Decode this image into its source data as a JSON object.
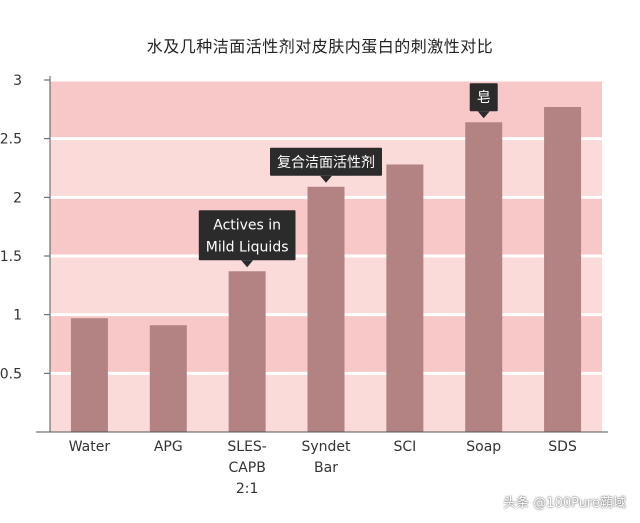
{
  "chart_data": {
    "type": "bar",
    "title": "水及几种洁面活性剂对皮肤内蛋白的刺激性对比",
    "xlabel": "",
    "ylabel": "",
    "categories": [
      [
        "Water"
      ],
      [
        "APG"
      ],
      [
        "SLES-",
        "CAPB",
        "2:1"
      ],
      [
        "Syndet",
        "Bar"
      ],
      [
        "SCI"
      ],
      [
        "Soap"
      ],
      [
        "SDS"
      ]
    ],
    "values": [
      0.97,
      0.91,
      1.37,
      2.09,
      2.28,
      2.64,
      2.77
    ],
    "ylim": [
      0,
      3
    ],
    "yticks": [
      0.5,
      1,
      1.5,
      2,
      2.5,
      3
    ],
    "ytick_labels": [
      "0.5",
      "1",
      "1.5",
      "2",
      "2.5",
      "3"
    ],
    "grid": true,
    "annotations": [
      {
        "category_index": 2,
        "lines": [
          "Actives in",
          "Mild Liquids"
        ]
      },
      {
        "category_index": 3,
        "lines": [
          "复合洁面活性剂"
        ]
      },
      {
        "category_index": 5,
        "lines": [
          "皂"
        ]
      }
    ],
    "colors": {
      "bar": "#b38384",
      "band_dark": "#f8c8c9",
      "band_light": "#fbdada",
      "gridline": "#ffffff",
      "axis": "#555555",
      "label_bg": "#2b2b2b",
      "label_text": "#ffffff"
    }
  },
  "watermark": "头条 @100Pure蒴域"
}
